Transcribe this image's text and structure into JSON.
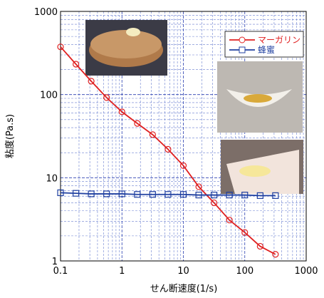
{
  "chart_data": {
    "type": "line",
    "xlabel": "せん断速度(1/s)",
    "ylabel": "粘度(Pa.s)",
    "x": [
      0.1,
      0.178,
      0.316,
      0.562,
      1,
      1.78,
      3.16,
      5.62,
      10,
      17.8,
      31.6,
      56.2,
      100,
      178,
      316
    ],
    "series": [
      {
        "name": "マーガリン",
        "color": "#e02020",
        "marker": "circle",
        "values": [
          375,
          232,
          145,
          92,
          62,
          45,
          33,
          22,
          14,
          7.8,
          5,
          3.1,
          2.2,
          1.5,
          1.2
        ]
      },
      {
        "name": "蜂蜜",
        "color": "#2040a0",
        "marker": "square",
        "values": [
          6.6,
          6.5,
          6.4,
          6.4,
          6.4,
          6.3,
          6.3,
          6.3,
          6.3,
          6.2,
          6.2,
          6.2,
          6.2,
          6.1,
          6.1
        ]
      }
    ],
    "xlim": [
      0.1,
      1000
    ],
    "ylim": [
      1,
      1000
    ],
    "xticks": [
      0.1,
      1,
      10,
      100,
      1000
    ],
    "yticks": [
      1,
      10,
      100,
      1000
    ],
    "xlog": true,
    "ylog": true,
    "grid": true,
    "legend": "upper right"
  }
}
